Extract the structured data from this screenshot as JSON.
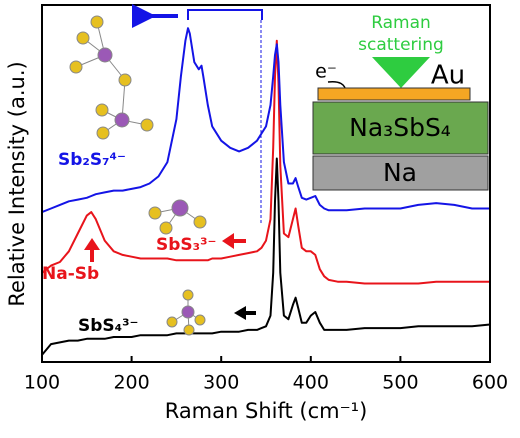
{
  "chart_data": {
    "type": "line",
    "x_label": "Raman Shift (cm⁻¹)",
    "y_label": "Relative Intensity (a.u.)",
    "x": [
      100,
      110,
      120,
      130,
      140,
      150,
      155,
      160,
      170,
      180,
      190,
      200,
      210,
      220,
      230,
      240,
      250,
      255,
      260,
      263,
      265,
      270,
      275,
      278,
      280,
      285,
      290,
      300,
      310,
      320,
      330,
      340,
      345,
      350,
      355,
      358,
      360,
      362,
      364,
      366,
      370,
      375,
      380,
      383,
      386,
      390,
      395,
      400,
      405,
      410,
      415,
      420,
      430,
      440,
      460,
      480,
      500,
      520,
      540,
      560,
      580,
      600
    ],
    "xlim": [
      100,
      600
    ],
    "xticks": [
      100,
      200,
      300,
      400,
      500,
      600
    ],
    "ylim": [
      0,
      100
    ],
    "series": [
      {
        "name": "SbS₄³⁻",
        "color": "#000000",
        "values": [
          2,
          5,
          5.5,
          6,
          6,
          6.5,
          6.5,
          6.5,
          6.5,
          7,
          7,
          7,
          7.5,
          7.5,
          7.5,
          7.5,
          8,
          8,
          8,
          8,
          8,
          8,
          8,
          8,
          8,
          8,
          8,
          8.5,
          8.5,
          8.5,
          9,
          9,
          9.5,
          10,
          13,
          25,
          45,
          57,
          45,
          25,
          13,
          12,
          16,
          18,
          15,
          11,
          11,
          13,
          14,
          11,
          9,
          9,
          9,
          9,
          9.5,
          9.5,
          9.5,
          10,
          10,
          10,
          10,
          10.5
        ]
      },
      {
        "name": "Na-Sb",
        "color": "#e8141b",
        "values": [
          25,
          27,
          28,
          31,
          36,
          41,
          42,
          40,
          34,
          31,
          30,
          29.5,
          29,
          29,
          29,
          29,
          28.5,
          28.5,
          28.5,
          28.5,
          28.5,
          28.5,
          28.5,
          28.5,
          28.5,
          28.5,
          29,
          29,
          29.5,
          30,
          30.5,
          31,
          32,
          34,
          40,
          60,
          80,
          90,
          78,
          55,
          36,
          35,
          40,
          43,
          38,
          32,
          31,
          31,
          30,
          26,
          24,
          23,
          22.5,
          22.5,
          22,
          22,
          22,
          22,
          22.5,
          22.5,
          22.5,
          22.5
        ]
      },
      {
        "name": "Sb₂S₇⁴⁻",
        "color": "#1414e6",
        "values": [
          42,
          43,
          44,
          45,
          45.5,
          46,
          46.5,
          47,
          47.5,
          48,
          48,
          48.5,
          49,
          50,
          52,
          56,
          68,
          80,
          90,
          93.5,
          92,
          84,
          82,
          83,
          80,
          72,
          66,
          62,
          60,
          59,
          60,
          62,
          64,
          66,
          72,
          80,
          86,
          89,
          84,
          72,
          56,
          50,
          50,
          51.5,
          49,
          46,
          45.5,
          46,
          46.5,
          44,
          43,
          42.5,
          42.5,
          42.5,
          43,
          43,
          43,
          44,
          44.5,
          44,
          43,
          43
        ]
      }
    ],
    "annotations": [
      "SbS₃³⁻"
    ],
    "inset_labels": {
      "raman": "Raman",
      "scattering": "scattering",
      "electron": "e⁻",
      "au": "Au",
      "electrolyte": "Na₃SbS₄",
      "anode": "Na"
    }
  }
}
